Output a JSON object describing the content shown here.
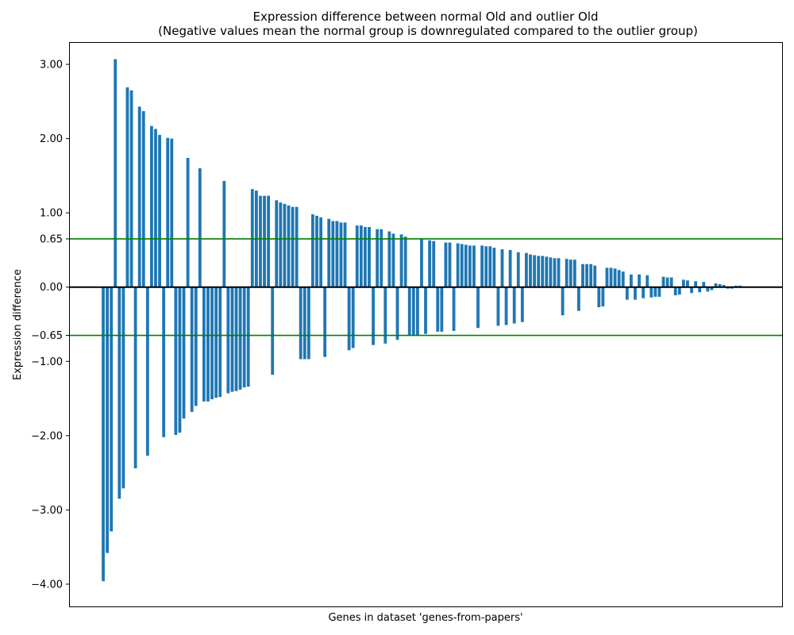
{
  "chart_data": {
    "type": "bar",
    "title": "Expression difference between normal Old and outlier Old",
    "subtitle": "(Negative values mean the normal group is downregulated compared to the outlier group)",
    "xlabel": "Genes in dataset 'genes-from-papers'",
    "ylabel": "Expression difference",
    "ylim": [
      -4.3,
      3.3
    ],
    "yticks": [
      3.0,
      2.0,
      1.0,
      0.65,
      0.0,
      -0.65,
      -1.0,
      -2.0,
      -3.0,
      -4.0
    ],
    "ytick_labels": [
      "3.00",
      "2.00",
      "1.00",
      "0.65",
      "0.00",
      "−0.65",
      "−1.00",
      "−2.00",
      "−3.00",
      "−4.00"
    ],
    "reference_lines": [
      {
        "y": 0.65,
        "color": "#008000"
      },
      {
        "y": -0.65,
        "color": "#008000"
      },
      {
        "y": 0.0,
        "color": "#000000"
      }
    ],
    "bar_color": "#1f77b4",
    "grid": false,
    "values": [
      -3.96,
      -3.58,
      -3.29,
      3.07,
      -2.85,
      -2.71,
      2.69,
      2.65,
      -2.44,
      2.43,
      2.37,
      -2.27,
      2.17,
      2.13,
      2.05,
      -2.02,
      2.01,
      2.0,
      -1.99,
      -1.96,
      -1.77,
      1.74,
      -1.68,
      -1.6,
      1.6,
      -1.54,
      -1.54,
      -1.51,
      -1.49,
      -1.48,
      1.43,
      -1.43,
      -1.41,
      -1.4,
      -1.38,
      -1.35,
      -1.34,
      1.32,
      1.3,
      1.23,
      1.23,
      1.23,
      -1.18,
      1.17,
      1.14,
      1.12,
      1.1,
      1.08,
      1.08,
      -0.97,
      -0.97,
      -0.97,
      0.98,
      0.96,
      0.94,
      -0.94,
      0.92,
      0.89,
      0.89,
      0.87,
      0.87,
      -0.85,
      -0.82,
      0.83,
      0.83,
      0.81,
      0.81,
      -0.78,
      0.78,
      0.78,
      -0.76,
      0.75,
      0.72,
      -0.71,
      0.71,
      0.68,
      -0.65,
      -0.65,
      -0.65,
      0.65,
      -0.63,
      0.63,
      0.62,
      -0.6,
      -0.6,
      0.6,
      0.6,
      -0.59,
      0.59,
      0.58,
      0.57,
      0.56,
      0.56,
      -0.55,
      0.56,
      0.55,
      0.55,
      0.53,
      -0.52,
      0.51,
      -0.51,
      0.5,
      -0.49,
      0.47,
      -0.47,
      0.46,
      0.44,
      0.43,
      0.42,
      0.42,
      0.41,
      0.4,
      0.39,
      0.39,
      -0.38,
      0.38,
      0.37,
      0.37,
      -0.32,
      0.31,
      0.31,
      0.31,
      0.29,
      -0.27,
      -0.26,
      0.26,
      0.26,
      0.25,
      0.23,
      0.21,
      -0.17,
      0.17,
      -0.17,
      0.17,
      -0.15,
      0.16,
      -0.14,
      -0.13,
      -0.13,
      0.14,
      0.13,
      0.13,
      -0.11,
      -0.1,
      0.1,
      0.09,
      -0.08,
      0.08,
      -0.07,
      0.07,
      -0.06,
      -0.04,
      0.05,
      0.04,
      0.03,
      -0.02,
      -0.02,
      0.02,
      0.02,
      0.01
    ]
  }
}
